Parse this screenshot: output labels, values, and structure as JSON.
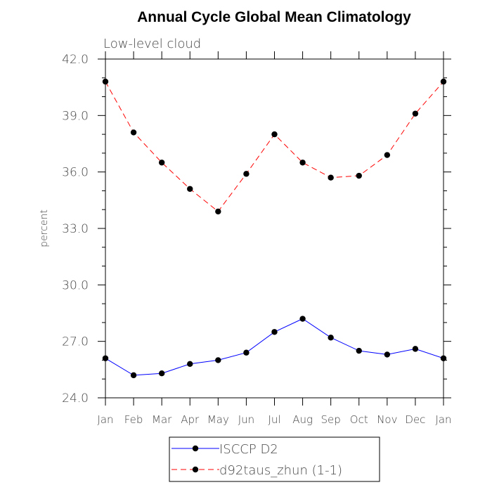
{
  "chart_data": {
    "type": "line",
    "title": "Annual Cycle Global Mean Climatology",
    "subtitle": "Low-level cloud",
    "xlabel": "",
    "ylabel": "percent",
    "categories": [
      "Jan",
      "Feb",
      "Mar",
      "Apr",
      "May",
      "Jun",
      "Jul",
      "Aug",
      "Sep",
      "Oct",
      "Nov",
      "Dec",
      "Jan"
    ],
    "ylim": [
      24.0,
      42.0
    ],
    "yticks": [
      "24.0",
      "27.0",
      "30.0",
      "33.0",
      "36.0",
      "39.0",
      "42.0"
    ],
    "grid": false,
    "legend_position": "bottom",
    "series": [
      {
        "name": "ISCCP D2",
        "color": "#0000ff",
        "dash": "solid",
        "values": [
          26.1,
          25.2,
          25.3,
          25.8,
          26.0,
          26.4,
          27.5,
          28.2,
          27.2,
          26.5,
          26.3,
          26.6,
          26.1
        ]
      },
      {
        "name": "d92taus_zhun (1-1)",
        "color": "#ff0000",
        "dash": "dashed",
        "values": [
          40.8,
          38.1,
          36.5,
          35.1,
          33.9,
          35.9,
          38.0,
          36.5,
          35.7,
          35.8,
          36.9,
          39.1,
          40.8
        ]
      }
    ]
  }
}
